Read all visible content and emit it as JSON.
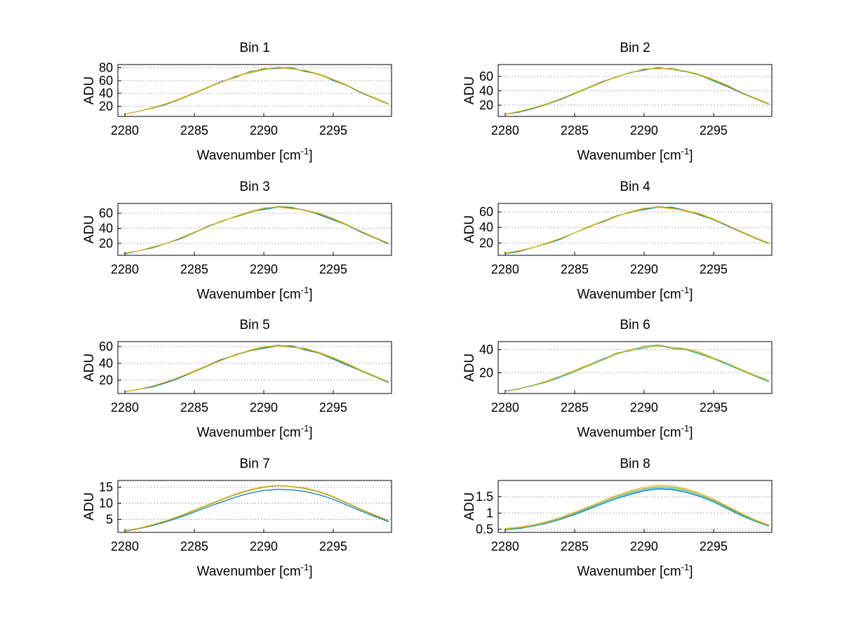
{
  "figure": {
    "background": "#ffffff"
  },
  "labels": {
    "xlabel_base": "Wavenumber [cm",
    "xlabel_sup": "-1",
    "xlabel_close": "]",
    "ylabel": "ADU"
  },
  "palette": {
    "blue": "#0072BD",
    "cyan": "#4DBEEE",
    "green": "#77AC30",
    "yellow": "#EDB120"
  },
  "chart_data": [
    {
      "type": "line",
      "title": "Bin 1",
      "xlabel": "Wavenumber [cm^-1]",
      "ylabel": "ADU",
      "xlim": [
        2279.5,
        2299.2
      ],
      "ylim": [
        4,
        85
      ],
      "xticks": [
        2280,
        2285,
        2290,
        2295
      ],
      "yticks": [
        20,
        40,
        60,
        80
      ],
      "grid": "horizontal-dotted",
      "x": [
        2280,
        2281,
        2282,
        2283,
        2284,
        2285,
        2286,
        2287,
        2288,
        2289,
        2290,
        2291,
        2292,
        2293,
        2294,
        2295,
        2296,
        2297,
        2298,
        2299
      ],
      "series": [
        {
          "name": "blue",
          "color": "#0072BD",
          "values": [
            8,
            12,
            17,
            23,
            31,
            40,
            50,
            59,
            65,
            74,
            78,
            79,
            80,
            74,
            70,
            60,
            52,
            41,
            32,
            23
          ]
        },
        {
          "name": "green",
          "color": "#77AC30",
          "values": [
            8,
            12,
            17,
            24,
            31,
            40,
            49,
            58,
            67,
            72,
            77,
            81,
            79,
            75,
            69,
            61,
            52,
            42,
            32,
            23
          ]
        },
        {
          "name": "yellow",
          "color": "#EDB120",
          "values": [
            8,
            12,
            18,
            24,
            32,
            41,
            50,
            58,
            66,
            73,
            79,
            80,
            78,
            76,
            70,
            62,
            53,
            42,
            33,
            24
          ]
        }
      ]
    },
    {
      "type": "line",
      "title": "Bin 2",
      "xlabel": "Wavenumber [cm^-1]",
      "ylabel": "ADU",
      "xlim": [
        2279.5,
        2299.2
      ],
      "ylim": [
        4,
        77
      ],
      "xticks": [
        2280,
        2285,
        2290,
        2295
      ],
      "yticks": [
        20,
        40,
        60
      ],
      "grid": "horizontal-dotted",
      "x": [
        2280,
        2281,
        2282,
        2283,
        2284,
        2285,
        2286,
        2287,
        2288,
        2289,
        2290,
        2291,
        2292,
        2293,
        2294,
        2295,
        2296,
        2297,
        2298,
        2299
      ],
      "series": [
        {
          "name": "blue",
          "color": "#0072BD",
          "values": [
            7,
            10,
            15,
            21,
            28,
            36,
            45,
            53,
            59,
            66,
            69,
            73,
            70,
            67,
            62,
            54,
            46,
            37,
            29,
            21
          ]
        },
        {
          "name": "green",
          "color": "#77AC30",
          "values": [
            7,
            11,
            16,
            21,
            29,
            36,
            44,
            52,
            60,
            65,
            71,
            71,
            72,
            67,
            62,
            55,
            47,
            38,
            29,
            21
          ]
        },
        {
          "name": "yellow",
          "color": "#EDB120",
          "values": [
            7,
            11,
            16,
            22,
            29,
            37,
            45,
            52,
            59,
            66,
            70,
            72,
            70,
            68,
            63,
            56,
            48,
            38,
            30,
            22
          ]
        }
      ]
    },
    {
      "type": "line",
      "title": "Bin 3",
      "xlabel": "Wavenumber [cm^-1]",
      "ylabel": "ADU",
      "xlim": [
        2279.5,
        2299.2
      ],
      "ylim": [
        4,
        73
      ],
      "xticks": [
        2280,
        2285,
        2290,
        2295
      ],
      "yticks": [
        20,
        40,
        60
      ],
      "grid": "horizontal-dotted",
      "x": [
        2280,
        2281,
        2282,
        2283,
        2284,
        2285,
        2286,
        2287,
        2288,
        2289,
        2290,
        2291,
        2292,
        2293,
        2294,
        2295,
        2296,
        2297,
        2298,
        2299
      ],
      "series": [
        {
          "name": "blue",
          "color": "#0072BD",
          "values": [
            6,
            10,
            14,
            20,
            26,
            34,
            43,
            49,
            56,
            62,
            65,
            68,
            67,
            64,
            58,
            51,
            44,
            35,
            27,
            19
          ]
        },
        {
          "name": "green",
          "color": "#77AC30",
          "values": [
            7,
            10,
            15,
            20,
            27,
            34,
            42,
            50,
            55,
            61,
            66,
            69,
            68,
            63,
            59,
            52,
            44,
            36,
            27,
            20
          ]
        },
        {
          "name": "yellow",
          "color": "#EDB120",
          "values": [
            7,
            10,
            15,
            20,
            27,
            35,
            42,
            49,
            56,
            62,
            67,
            68,
            66,
            64,
            60,
            53,
            45,
            36,
            28,
            20
          ]
        }
      ]
    },
    {
      "type": "line",
      "title": "Bin 4",
      "xlabel": "Wavenumber [cm^-1]",
      "ylabel": "ADU",
      "xlim": [
        2279.5,
        2299.2
      ],
      "ylim": [
        4,
        71
      ],
      "xticks": [
        2280,
        2285,
        2290,
        2295
      ],
      "yticks": [
        20,
        40,
        60
      ],
      "grid": "horizontal-dotted",
      "x": [
        2280,
        2281,
        2282,
        2283,
        2284,
        2285,
        2286,
        2287,
        2288,
        2289,
        2290,
        2291,
        2292,
        2293,
        2294,
        2295,
        2296,
        2297,
        2298,
        2299
      ],
      "series": [
        {
          "name": "blue",
          "color": "#0072BD",
          "values": [
            6,
            9,
            14,
            19,
            25,
            33,
            41,
            47,
            54,
            60,
            63,
            66,
            66,
            62,
            56,
            50,
            42,
            34,
            26,
            19
          ]
        },
        {
          "name": "green",
          "color": "#77AC30",
          "values": [
            6,
            10,
            14,
            19,
            26,
            33,
            40,
            48,
            55,
            59,
            64,
            67,
            65,
            61,
            57,
            50,
            43,
            34,
            26,
            19
          ]
        },
        {
          "name": "yellow",
          "color": "#EDB120",
          "values": [
            7,
            10,
            14,
            20,
            26,
            33,
            41,
            48,
            54,
            60,
            65,
            66,
            64,
            62,
            58,
            51,
            43,
            35,
            27,
            20
          ]
        }
      ]
    },
    {
      "type": "line",
      "title": "Bin 5",
      "xlabel": "Wavenumber [cm^-1]",
      "ylabel": "ADU",
      "xlim": [
        2279.5,
        2299.2
      ],
      "ylim": [
        4,
        66
      ],
      "xticks": [
        2280,
        2285,
        2290,
        2295
      ],
      "yticks": [
        20,
        40,
        60
      ],
      "grid": "horizontal-dotted",
      "x": [
        2280,
        2281,
        2282,
        2283,
        2284,
        2285,
        2286,
        2287,
        2288,
        2289,
        2290,
        2291,
        2292,
        2293,
        2294,
        2295,
        2296,
        2297,
        2298,
        2299
      ],
      "series": [
        {
          "name": "blue",
          "color": "#0072BD",
          "values": [
            6,
            9,
            12,
            17,
            23,
            30,
            38,
            45,
            50,
            55,
            58,
            61,
            61,
            56,
            52,
            45,
            38,
            31,
            24,
            17
          ]
        },
        {
          "name": "green",
          "color": "#77AC30",
          "values": [
            6,
            9,
            13,
            18,
            24,
            30,
            37,
            44,
            51,
            55,
            59,
            62,
            60,
            57,
            52,
            46,
            39,
            31,
            24,
            18
          ]
        },
        {
          "name": "yellow",
          "color": "#EDB120",
          "values": [
            6,
            9,
            13,
            18,
            24,
            31,
            38,
            44,
            50,
            56,
            60,
            61,
            59,
            58,
            53,
            47,
            40,
            32,
            25,
            18
          ]
        }
      ]
    },
    {
      "type": "line",
      "title": "Bin 6",
      "xlabel": "Wavenumber [cm^-1]",
      "ylabel": "ADU",
      "xlim": [
        2279.5,
        2299.2
      ],
      "ylim": [
        2,
        47
      ],
      "xticks": [
        2280,
        2285,
        2290,
        2295
      ],
      "yticks": [
        20,
        40
      ],
      "grid": "horizontal-dotted",
      "x": [
        2280,
        2281,
        2282,
        2283,
        2284,
        2285,
        2286,
        2287,
        2288,
        2289,
        2290,
        2291,
        2292,
        2293,
        2294,
        2295,
        2296,
        2297,
        2298,
        2299
      ],
      "series": [
        {
          "name": "cyan",
          "color": "#4DBEEE",
          "values": [
            4,
            6,
            9,
            12,
            16,
            21,
            27,
            32,
            36,
            40,
            41,
            44,
            42,
            40,
            36,
            32,
            27,
            22,
            17,
            12
          ]
        },
        {
          "name": "yellow",
          "color": "#EDB120",
          "values": [
            4,
            6,
            9,
            13,
            17,
            22,
            27,
            31,
            36,
            40,
            42,
            43,
            42,
            41,
            38,
            33,
            28,
            23,
            18,
            13
          ]
        },
        {
          "name": "green",
          "color": "#77AC30",
          "values": [
            4,
            6,
            9,
            12,
            17,
            21,
            26,
            31,
            37,
            39,
            43,
            44,
            41,
            40,
            37,
            32,
            28,
            22,
            17,
            13
          ]
        }
      ]
    },
    {
      "type": "line",
      "title": "Bin 7",
      "xlabel": "Wavenumber [cm^-1]",
      "ylabel": "ADU",
      "xlim": [
        2279.5,
        2299.2
      ],
      "ylim": [
        1,
        17
      ],
      "xticks": [
        2280,
        2285,
        2290,
        2295
      ],
      "yticks": [
        5,
        10,
        15
      ],
      "grid": "horizontal-dotted",
      "x": [
        2280,
        2281,
        2282,
        2283,
        2284,
        2285,
        2286,
        2287,
        2288,
        2289,
        2290,
        2291,
        2292,
        2293,
        2294,
        2295,
        2296,
        2297,
        2298,
        2299
      ],
      "series": [
        {
          "name": "blue",
          "color": "#0072BD",
          "values": [
            1.4,
            2.1,
            3.1,
            4.3,
            5.7,
            7.3,
            8.9,
            10.4,
            11.9,
            13.1,
            13.9,
            14.3,
            14.1,
            13.6,
            12.6,
            11.2,
            9.4,
            7.6,
            5.9,
            4.3
          ]
        },
        {
          "name": "green",
          "color": "#77AC30",
          "values": [
            1.5,
            2.2,
            3.3,
            4.6,
            6.0,
            7.7,
            9.4,
            11.1,
            12.7,
            14.0,
            14.9,
            15.4,
            15.1,
            14.5,
            13.4,
            11.9,
            10.0,
            8.0,
            6.2,
            4.6
          ]
        },
        {
          "name": "yellow",
          "color": "#EDB120",
          "values": [
            1.6,
            2.3,
            3.4,
            4.7,
            6.2,
            7.9,
            9.6,
            11.3,
            12.9,
            14.2,
            15.1,
            15.5,
            15.2,
            14.7,
            13.6,
            12.1,
            10.2,
            8.2,
            6.4,
            4.7
          ]
        }
      ]
    },
    {
      "type": "line",
      "title": "Bin 8",
      "xlabel": "Wavenumber [cm^-1]",
      "ylabel": "ADU",
      "xlim": [
        2279.5,
        2299.2
      ],
      "ylim": [
        0.4,
        2.0
      ],
      "xticks": [
        2280,
        2285,
        2290,
        2295
      ],
      "yticks": [
        0.5,
        1,
        1.5
      ],
      "grid": "horizontal-dotted",
      "x": [
        2280,
        2281,
        2282,
        2283,
        2284,
        2285,
        2286,
        2287,
        2288,
        2289,
        2290,
        2291,
        2292,
        2293,
        2294,
        2295,
        2296,
        2297,
        2298,
        2299
      ],
      "series": [
        {
          "name": "blue",
          "color": "#0072BD",
          "values": [
            0.48,
            0.52,
            0.59,
            0.68,
            0.8,
            0.95,
            1.11,
            1.28,
            1.44,
            1.57,
            1.68,
            1.74,
            1.72,
            1.64,
            1.51,
            1.34,
            1.13,
            0.92,
            0.74,
            0.59
          ]
        },
        {
          "name": "cyan",
          "color": "#4DBEEE",
          "values": [
            0.49,
            0.53,
            0.6,
            0.69,
            0.81,
            0.97,
            1.13,
            1.3,
            1.46,
            1.6,
            1.71,
            1.77,
            1.75,
            1.67,
            1.53,
            1.36,
            1.15,
            0.94,
            0.75,
            0.6
          ]
        },
        {
          "name": "green",
          "color": "#77AC30",
          "values": [
            0.5,
            0.54,
            0.61,
            0.71,
            0.83,
            0.99,
            1.16,
            1.33,
            1.5,
            1.64,
            1.75,
            1.81,
            1.79,
            1.71,
            1.57,
            1.39,
            1.18,
            0.96,
            0.77,
            0.61
          ]
        },
        {
          "name": "yellow",
          "color": "#EDB120",
          "values": [
            0.52,
            0.56,
            0.63,
            0.73,
            0.86,
            1.02,
            1.19,
            1.37,
            1.54,
            1.68,
            1.8,
            1.86,
            1.83,
            1.75,
            1.61,
            1.43,
            1.21,
            0.99,
            0.79,
            0.63
          ]
        }
      ]
    }
  ]
}
